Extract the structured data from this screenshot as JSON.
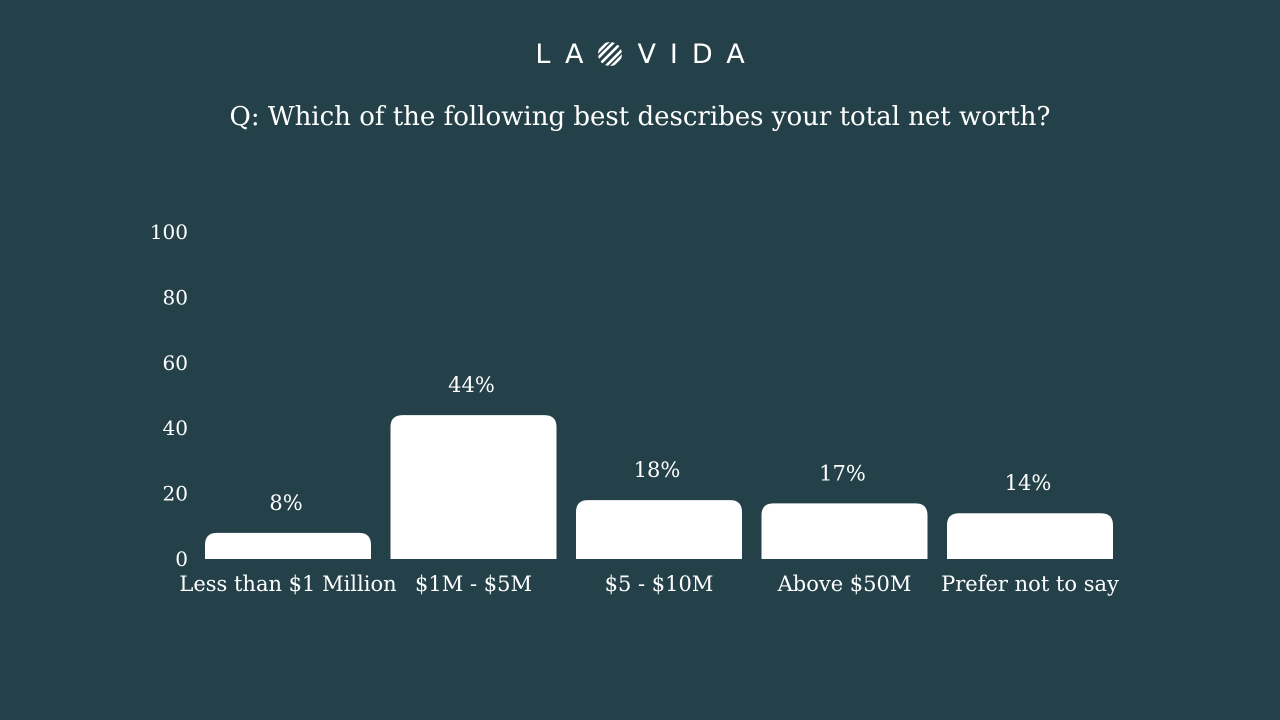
{
  "brand": {
    "left": "LA",
    "right": "VIDA",
    "mark_icon": "diagonal-stripes-circle-icon"
  },
  "question": "Q: Which of the following best describes your total net worth?",
  "colors": {
    "background": "#244149",
    "bar": "#ffffff",
    "text": "#ffffff"
  },
  "chart_data": {
    "type": "bar",
    "title": "",
    "xlabel": "",
    "ylabel": "",
    "categories": [
      "Less than $1 Million",
      "$1M - $5M",
      "$5 - $10M",
      "Above $50M",
      "Prefer not to say"
    ],
    "values": [
      8,
      44,
      18,
      17,
      14
    ],
    "data_labels": [
      "8%",
      "44%",
      "18%",
      "17%",
      "14%"
    ],
    "yticks": [
      0,
      20,
      40,
      60,
      80,
      100
    ],
    "ylim": [
      0,
      100
    ],
    "grid": false,
    "legend": "none"
  }
}
